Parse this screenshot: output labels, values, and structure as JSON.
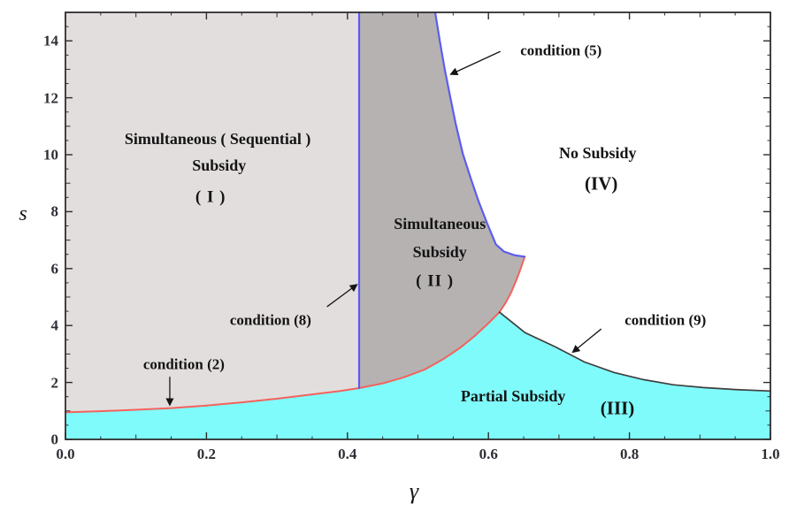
{
  "chart_data": {
    "type": "area",
    "title": "",
    "xlabel": "γ",
    "ylabel": "s",
    "xlim": [
      0,
      1
    ],
    "ylim": [
      0,
      15
    ],
    "grid": false,
    "x_major_ticks": [
      0,
      0.2,
      0.4,
      0.6,
      0.8,
      1.0
    ],
    "x_tick_labels": [
      "0.0",
      "0.2",
      "0.4",
      "0.6",
      "0.8",
      "1.0"
    ],
    "x_minor_step": 0.05,
    "y_major_ticks": [
      0,
      2,
      4,
      6,
      8,
      10,
      12,
      14
    ],
    "y_tick_labels": [
      "0",
      "2",
      "4",
      "6",
      "8",
      "10",
      "12",
      "14"
    ],
    "y_minor_step": 0.5,
    "colors": {
      "frame": "#2d2d2d",
      "background": "#ffffff",
      "text": "#141414",
      "tick_label": "#2e2f36",
      "region1_fill": "#e3dede",
      "region2_fill": "#b6b2b2",
      "region3_fill": "#80fbfb",
      "region4_fill": "#ffffff",
      "blue_curve": "#5c5cf0",
      "red_curve": "#f4625c",
      "black_curve": "#3f3f3f"
    },
    "regions": [
      {
        "id": "region-1",
        "name": "Simultaneous ( Sequential ) Subsidy",
        "numeral": "( I )",
        "fill": "#e3dede"
      },
      {
        "id": "region-2",
        "name": "Simultaneous Subsidy",
        "numeral": "( II )",
        "fill": "#b6b2b2"
      },
      {
        "id": "region-3",
        "name": "Partial Subsidy",
        "numeral": "(III)",
        "fill": "#80fbfb"
      },
      {
        "id": "region-4",
        "name": "No Subsidy",
        "numeral": "(IV)",
        "fill": "#ffffff"
      }
    ],
    "region_labels": {
      "r1": {
        "line1": "Simultaneous ( Sequential )",
        "line2": "Subsidy",
        "numeral": "( I )",
        "pos_line1": [
          0.216,
          10.56
        ],
        "pos_line2": [
          0.218,
          9.63
        ],
        "pos_numeral": [
          0.206,
          8.51
        ]
      },
      "r2": {
        "line1": "Simultaneous",
        "line2": "Subsidy",
        "numeral": "( II )",
        "pos_line1": [
          0.531,
          7.58
        ],
        "pos_line2": [
          0.531,
          6.58
        ],
        "pos_numeral": [
          0.524,
          5.56
        ]
      },
      "r3": {
        "line1": "Partial Subsidy",
        "numeral": "(III)",
        "pos_line1": [
          0.635,
          1.52
        ],
        "pos_numeral": [
          0.783,
          1.09
        ]
      },
      "r4": {
        "line1": "No Subsidy",
        "numeral": "(IV)",
        "pos_line1": [
          0.755,
          10.06
        ],
        "pos_numeral": [
          0.76,
          8.98
        ]
      }
    },
    "curves": [
      {
        "id": "condition-2",
        "label": "condition (2)",
        "color": "#f4625c",
        "width": 2,
        "points": [
          [
            0,
            0.95
          ],
          [
            0.05,
            0.99
          ],
          [
            0.1,
            1.04
          ],
          [
            0.15,
            1.1
          ],
          [
            0.2,
            1.19
          ],
          [
            0.25,
            1.3
          ],
          [
            0.3,
            1.43
          ],
          [
            0.35,
            1.58
          ],
          [
            0.3866,
            1.69
          ],
          [
            0.4166,
            1.8
          ],
          [
            0.45,
            1.97
          ],
          [
            0.48,
            2.18
          ],
          [
            0.51,
            2.46
          ],
          [
            0.536,
            2.82
          ],
          [
            0.56,
            3.22
          ],
          [
            0.58,
            3.62
          ],
          [
            0.6,
            4.08
          ],
          [
            0.6155,
            4.47
          ],
          [
            0.624,
            4.78
          ],
          [
            0.632,
            5.15
          ],
          [
            0.64,
            5.62
          ],
          [
            0.646,
            6.02
          ],
          [
            0.6515,
            6.42
          ]
        ]
      },
      {
        "id": "condition-8",
        "label": "condition (8)",
        "color": "#5c5cf0",
        "width": 2.2,
        "points": [
          [
            0.4166,
            1.8
          ],
          [
            0.4166,
            15
          ]
        ]
      },
      {
        "id": "condition-5",
        "label": "condition (5)",
        "color": "#5c5cf0",
        "width": 2.2,
        "points": [
          [
            0.5245,
            15
          ],
          [
            0.531,
            14.0
          ],
          [
            0.538,
            13.0
          ],
          [
            0.546,
            12.0
          ],
          [
            0.5535,
            11.1
          ],
          [
            0.5635,
            10.05
          ],
          [
            0.5745,
            9.2
          ],
          [
            0.5855,
            8.4
          ],
          [
            0.598,
            7.6
          ],
          [
            0.6105,
            6.85
          ],
          [
            0.622,
            6.6
          ],
          [
            0.637,
            6.47
          ],
          [
            0.6515,
            6.42
          ]
        ]
      },
      {
        "id": "condition-9",
        "label": "condition (9)",
        "color": "#3f3f3f",
        "width": 1.7,
        "points": [
          [
            0.6155,
            4.47
          ],
          [
            0.652,
            3.75
          ],
          [
            0.695,
            3.25
          ],
          [
            0.736,
            2.72
          ],
          [
            0.778,
            2.35
          ],
          [
            0.82,
            2.1
          ],
          [
            0.862,
            1.92
          ],
          [
            0.905,
            1.82
          ],
          [
            0.95,
            1.75
          ],
          [
            1.0,
            1.7
          ]
        ]
      }
    ],
    "junctions": {
      "blue_vertical_x": 0.4166,
      "red_black_junction": [
        0.6155,
        4.47
      ],
      "blue_red_junction": [
        0.6515,
        6.42
      ]
    },
    "annotations": [
      {
        "id": "condition-5",
        "text": "condition (5)",
        "text_pos": [
          0.703,
          13.66
        ],
        "arrow": [
          [
            0.617,
            13.63
          ],
          [
            0.547,
            12.83
          ]
        ]
      },
      {
        "id": "condition-8",
        "text": "condition (8)",
        "text_pos": [
          0.291,
          4.19
        ],
        "arrow": [
          [
            0.371,
            4.66
          ],
          [
            0.413,
            5.43
          ]
        ]
      },
      {
        "id": "condition-2",
        "text": "condition (2)",
        "text_pos": [
          0.168,
          2.64
        ],
        "arrow": [
          [
            0.148,
            2.2
          ],
          [
            0.148,
            1.22
          ]
        ]
      },
      {
        "id": "condition-9",
        "text": "condition (9)",
        "text_pos": [
          0.851,
          4.19
        ],
        "arrow": [
          [
            0.76,
            3.88
          ],
          [
            0.72,
            3.07
          ]
        ]
      }
    ]
  }
}
